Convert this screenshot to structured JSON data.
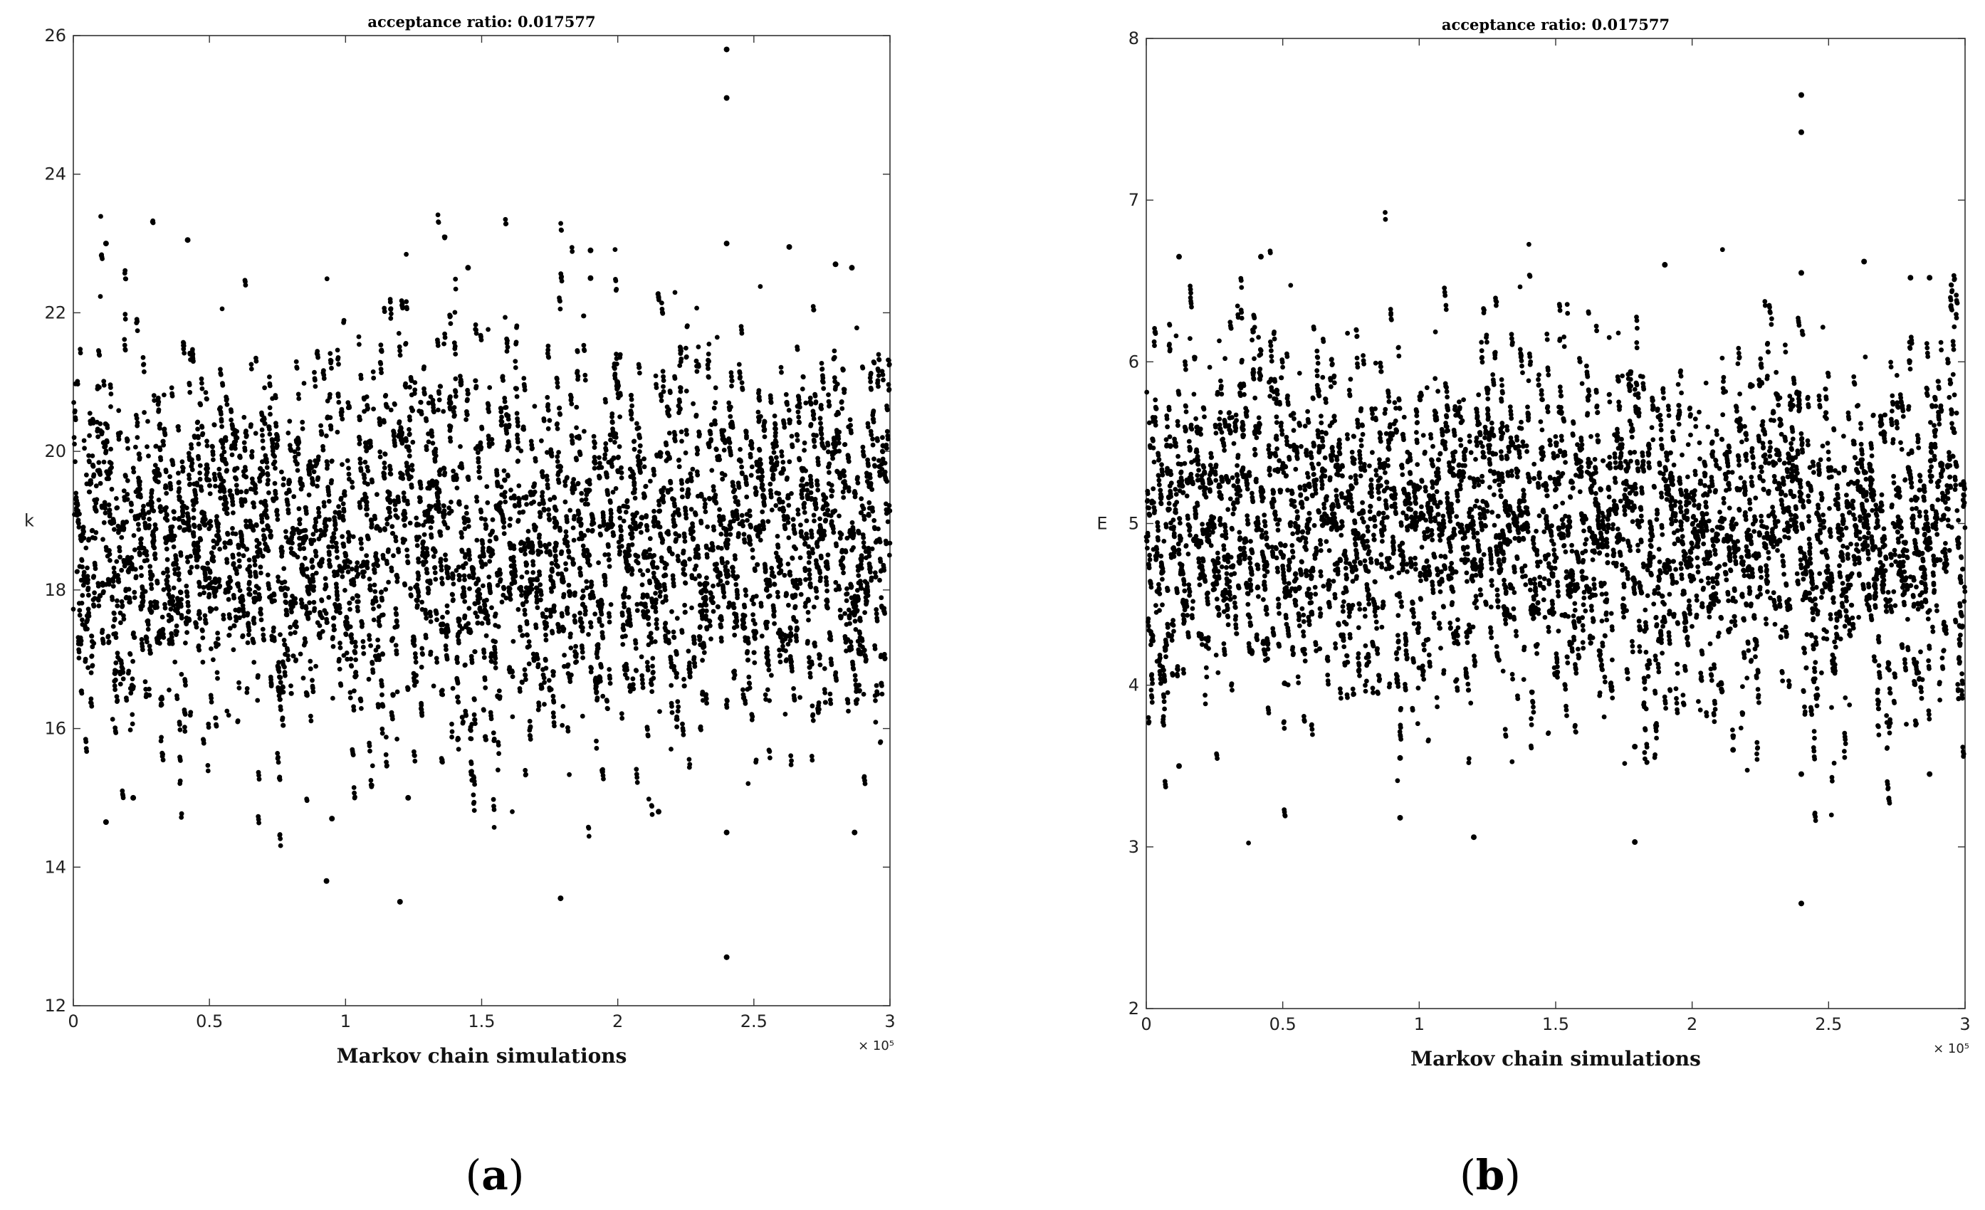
{
  "chart_data": [
    {
      "type": "scatter",
      "panel_label": "a",
      "title": "acceptance ratio: 0.017577",
      "xlabel": "Markov chain simulations",
      "ylabel": "k",
      "x_multiplier": "× 10⁵",
      "xlim": [
        0,
        3
      ],
      "ylim": [
        12,
        26
      ],
      "xticks": [
        "0",
        "0.5",
        "1",
        "1.5",
        "2",
        "2.5",
        "3"
      ],
      "yticks": [
        "12",
        "14",
        "16",
        "18",
        "20",
        "22",
        "24",
        "26"
      ],
      "grid": false,
      "central_value": 18.8,
      "typical_range": [
        16.0,
        21.8
      ],
      "notable_points": [
        {
          "x": 2.4,
          "y": 25.8
        },
        {
          "x": 2.4,
          "y": 25.1
        },
        {
          "x": 2.4,
          "y": 23.0
        },
        {
          "x": 2.4,
          "y": 14.5
        },
        {
          "x": 2.4,
          "y": 12.7
        },
        {
          "x": 0.42,
          "y": 23.05
        },
        {
          "x": 0.12,
          "y": 23.0
        },
        {
          "x": 1.9,
          "y": 22.9
        },
        {
          "x": 1.9,
          "y": 22.5
        },
        {
          "x": 2.63,
          "y": 22.95
        },
        {
          "x": 2.8,
          "y": 22.7
        },
        {
          "x": 2.86,
          "y": 22.65
        },
        {
          "x": 1.45,
          "y": 22.65
        },
        {
          "x": 0.93,
          "y": 13.8
        },
        {
          "x": 1.2,
          "y": 13.5
        },
        {
          "x": 1.79,
          "y": 13.55
        },
        {
          "x": 0.12,
          "y": 14.65
        },
        {
          "x": 0.95,
          "y": 14.7
        },
        {
          "x": 2.15,
          "y": 14.8
        },
        {
          "x": 2.87,
          "y": 14.5
        },
        {
          "x": 0.22,
          "y": 15.0
        },
        {
          "x": 1.23,
          "y": 15.0
        }
      ]
    },
    {
      "type": "scatter",
      "panel_label": "b",
      "title": "acceptance ratio: 0.017577",
      "xlabel": "Markov chain simulations",
      "ylabel": "E",
      "x_multiplier": "× 10⁵",
      "xlim": [
        0,
        3
      ],
      "ylim": [
        2,
        8
      ],
      "xticks": [
        "0",
        "0.5",
        "1",
        "1.5",
        "2",
        "2.5",
        "3"
      ],
      "yticks": [
        "2",
        "3",
        "4",
        "5",
        "6",
        "7",
        "8"
      ],
      "grid": false,
      "central_value": 5.0,
      "typical_range": [
        3.8,
        6.2
      ],
      "notable_points": [
        {
          "x": 2.4,
          "y": 7.65
        },
        {
          "x": 2.4,
          "y": 7.42
        },
        {
          "x": 2.4,
          "y": 6.55
        },
        {
          "x": 2.4,
          "y": 3.45
        },
        {
          "x": 2.4,
          "y": 2.65
        },
        {
          "x": 0.12,
          "y": 6.65
        },
        {
          "x": 0.42,
          "y": 6.65
        },
        {
          "x": 2.63,
          "y": 6.62
        },
        {
          "x": 1.9,
          "y": 6.6
        },
        {
          "x": 2.8,
          "y": 6.52
        },
        {
          "x": 2.87,
          "y": 6.52
        },
        {
          "x": 0.93,
          "y": 3.18
        },
        {
          "x": 1.2,
          "y": 3.06
        },
        {
          "x": 1.79,
          "y": 3.03
        },
        {
          "x": 0.12,
          "y": 3.5
        },
        {
          "x": 0.93,
          "y": 3.55
        },
        {
          "x": 2.87,
          "y": 3.45
        },
        {
          "x": 1.79,
          "y": 3.62
        },
        {
          "x": 2.15,
          "y": 3.6
        }
      ]
    }
  ]
}
